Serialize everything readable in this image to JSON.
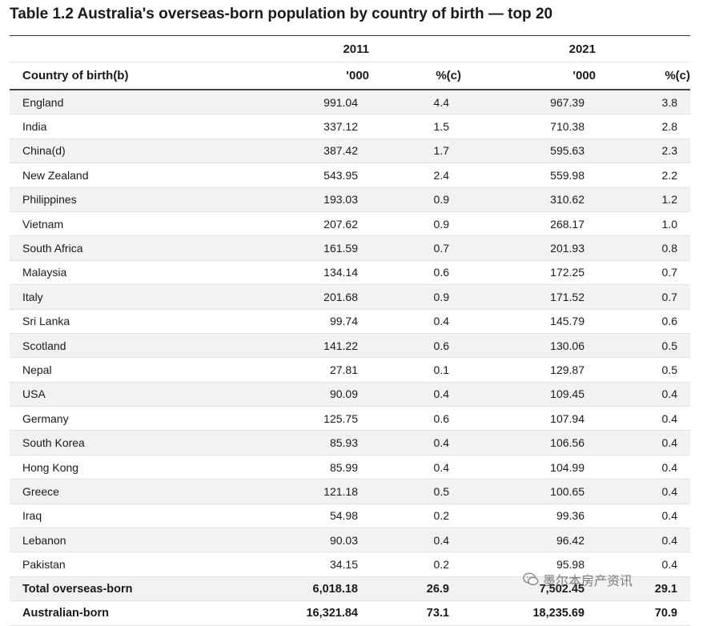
{
  "title": "Table 1.2 Australia's overseas-born population by country of birth — top 20",
  "header": {
    "year1": "2011",
    "year2": "2021",
    "country_col": "Country of birth(b)",
    "col_thousand_1": "'000",
    "col_pct_1": "%(c)",
    "col_thousand_2": "'000",
    "col_pct_2": "%(c)"
  },
  "rows": [
    {
      "country": "England",
      "v2011": "991.04",
      "p2011": "4.4",
      "v2021": "967.39",
      "p2021": "3.8"
    },
    {
      "country": "India",
      "v2011": "337.12",
      "p2011": "1.5",
      "v2021": "710.38",
      "p2021": "2.8"
    },
    {
      "country": "China(d)",
      "v2011": "387.42",
      "p2011": "1.7",
      "v2021": "595.63",
      "p2021": "2.3"
    },
    {
      "country": "New Zealand",
      "v2011": "543.95",
      "p2011": "2.4",
      "v2021": "559.98",
      "p2021": "2.2"
    },
    {
      "country": "Philippines",
      "v2011": "193.03",
      "p2011": "0.9",
      "v2021": "310.62",
      "p2021": "1.2"
    },
    {
      "country": "Vietnam",
      "v2011": "207.62",
      "p2011": "0.9",
      "v2021": "268.17",
      "p2021": "1.0"
    },
    {
      "country": "South Africa",
      "v2011": "161.59",
      "p2011": "0.7",
      "v2021": "201.93",
      "p2021": "0.8"
    },
    {
      "country": "Malaysia",
      "v2011": "134.14",
      "p2011": "0.6",
      "v2021": "172.25",
      "p2021": "0.7"
    },
    {
      "country": "Italy",
      "v2011": "201.68",
      "p2011": "0.9",
      "v2021": "171.52",
      "p2021": "0.7"
    },
    {
      "country": "Sri Lanka",
      "v2011": "99.74",
      "p2011": "0.4",
      "v2021": "145.79",
      "p2021": "0.6"
    },
    {
      "country": "Scotland",
      "v2011": "141.22",
      "p2011": "0.6",
      "v2021": "130.06",
      "p2021": "0.5"
    },
    {
      "country": "Nepal",
      "v2011": "27.81",
      "p2011": "0.1",
      "v2021": "129.87",
      "p2021": "0.5"
    },
    {
      "country": "USA",
      "v2011": "90.09",
      "p2011": "0.4",
      "v2021": "109.45",
      "p2021": "0.4"
    },
    {
      "country": "Germany",
      "v2011": "125.75",
      "p2011": "0.6",
      "v2021": "107.94",
      "p2021": "0.4"
    },
    {
      "country": "South Korea",
      "v2011": "85.93",
      "p2011": "0.4",
      "v2021": "106.56",
      "p2021": "0.4"
    },
    {
      "country": "Hong Kong",
      "v2011": "85.99",
      "p2011": "0.4",
      "v2021": "104.99",
      "p2021": "0.4"
    },
    {
      "country": "Greece",
      "v2011": "121.18",
      "p2011": "0.5",
      "v2021": "100.65",
      "p2021": "0.4"
    },
    {
      "country": "Iraq",
      "v2011": "54.98",
      "p2011": "0.2",
      "v2021": "99.36",
      "p2021": "0.4"
    },
    {
      "country": "Lebanon",
      "v2011": "90.03",
      "p2011": "0.4",
      "v2021": "96.42",
      "p2021": "0.4"
    },
    {
      "country": "Pakistan",
      "v2011": "34.15",
      "p2011": "0.2",
      "v2021": "95.98",
      "p2021": "0.4"
    }
  ],
  "totals": [
    {
      "country": "Total overseas-born",
      "v2011": "6,018.18",
      "p2011": "26.9",
      "v2021": "7,502.45",
      "p2021": "29.1",
      "kind": "total"
    },
    {
      "country": "Australian-born",
      "v2011": "16,321.84",
      "p2011": "73.1",
      "v2021": "18,235.69",
      "p2021": "70.9",
      "kind": "aus"
    }
  ],
  "watermark": {
    "text": "墨尔本房产资讯",
    "icon": "wechat-icon"
  }
}
